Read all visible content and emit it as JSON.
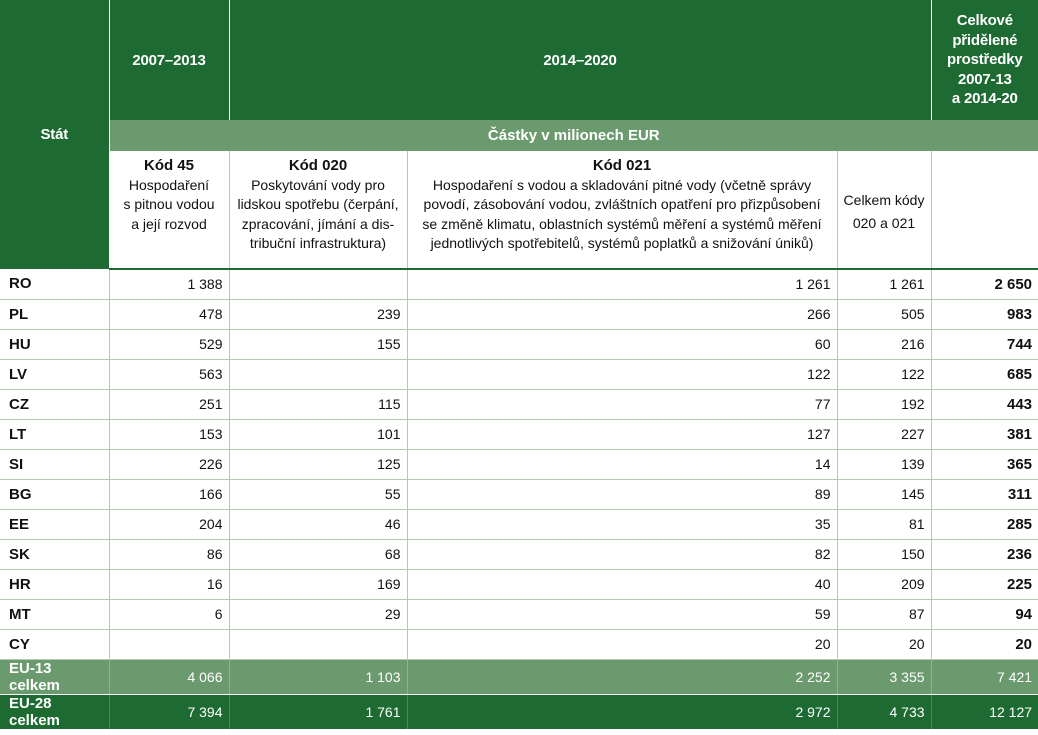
{
  "header": {
    "state_label": "Stát",
    "period_1": "2007–2013",
    "period_2": "2014–2020",
    "total_allocation": [
      "Celkové",
      "přidělené",
      "prostředky",
      "2007-13",
      "a 2014-20"
    ],
    "amounts_unit": "Částky v milionech EUR",
    "code45": {
      "code": "Kód 45",
      "desc": [
        "Hospodaření",
        "s pitnou vodou",
        "a její rozvod"
      ]
    },
    "code020": {
      "code": "Kód 020",
      "desc": [
        "Poskytování vody pro",
        "lidskou spotřebu (čerpání,",
        "zpracování, jímání a dis-",
        "tribuční infrastruktura)"
      ]
    },
    "code021": {
      "code": "Kód 021",
      "desc": [
        "Hospodaření s vodou a skladování pitné vody (včetně správy",
        "povodí, zásobování vodou, zvláštních opatření pro přizpůsobení",
        "se změně klimatu, oblastních systémů měření a systémů měření",
        "jednotlivých spotřebitelů, systémů poplatků a snižování úniků)"
      ]
    },
    "total_codes": [
      "Celkem kódy",
      "020 a 021"
    ]
  },
  "rows": [
    {
      "state": "RO",
      "k45": "1 388",
      "k020": "",
      "k021": "1 261",
      "sum": "1 261",
      "total": "2 650"
    },
    {
      "state": "PL",
      "k45": "478",
      "k020": "239",
      "k021": "266",
      "sum": "505",
      "total": "983"
    },
    {
      "state": "HU",
      "k45": "529",
      "k020": "155",
      "k021": "60",
      "sum": "216",
      "total": "744"
    },
    {
      "state": "LV",
      "k45": "563",
      "k020": "",
      "k021": "122",
      "sum": "122",
      "total": "685"
    },
    {
      "state": "CZ",
      "k45": "251",
      "k020": "115",
      "k021": "77",
      "sum": "192",
      "total": "443"
    },
    {
      "state": "LT",
      "k45": "153",
      "k020": "101",
      "k021": "127",
      "sum": "227",
      "total": "381"
    },
    {
      "state": "SI",
      "k45": "226",
      "k020": "125",
      "k021": "14",
      "sum": "139",
      "total": "365"
    },
    {
      "state": "BG",
      "k45": "166",
      "k020": "55",
      "k021": "89",
      "sum": "145",
      "total": "311"
    },
    {
      "state": "EE",
      "k45": "204",
      "k020": "46",
      "k021": "35",
      "sum": "81",
      "total": "285"
    },
    {
      "state": "SK",
      "k45": "86",
      "k020": "68",
      "k021": "82",
      "sum": "150",
      "total": "236"
    },
    {
      "state": "HR",
      "k45": "16",
      "k020": "169",
      "k021": "40",
      "sum": "209",
      "total": "225"
    },
    {
      "state": "MT",
      "k45": "6",
      "k020": "29",
      "k021": "59",
      "sum": "87",
      "total": "94"
    },
    {
      "state": "CY",
      "k45": "",
      "k020": "",
      "k021": "20",
      "sum": "20",
      "total": "20"
    }
  ],
  "eu13": {
    "state": "EU-13 celkem",
    "k45": "4 066",
    "k020": "1 103",
    "k021": "2 252",
    "sum": "3 355",
    "total": "7 421"
  },
  "eu28": {
    "state": "EU-28 celkem",
    "k45": "7 394",
    "k020": "1 761",
    "k021": "2 972",
    "sum": "4 733",
    "total": "12 127"
  },
  "colors": {
    "dark_green": "#1e6a33",
    "mid_green": "#6b9a6f",
    "grid": "#b7c9b4"
  }
}
